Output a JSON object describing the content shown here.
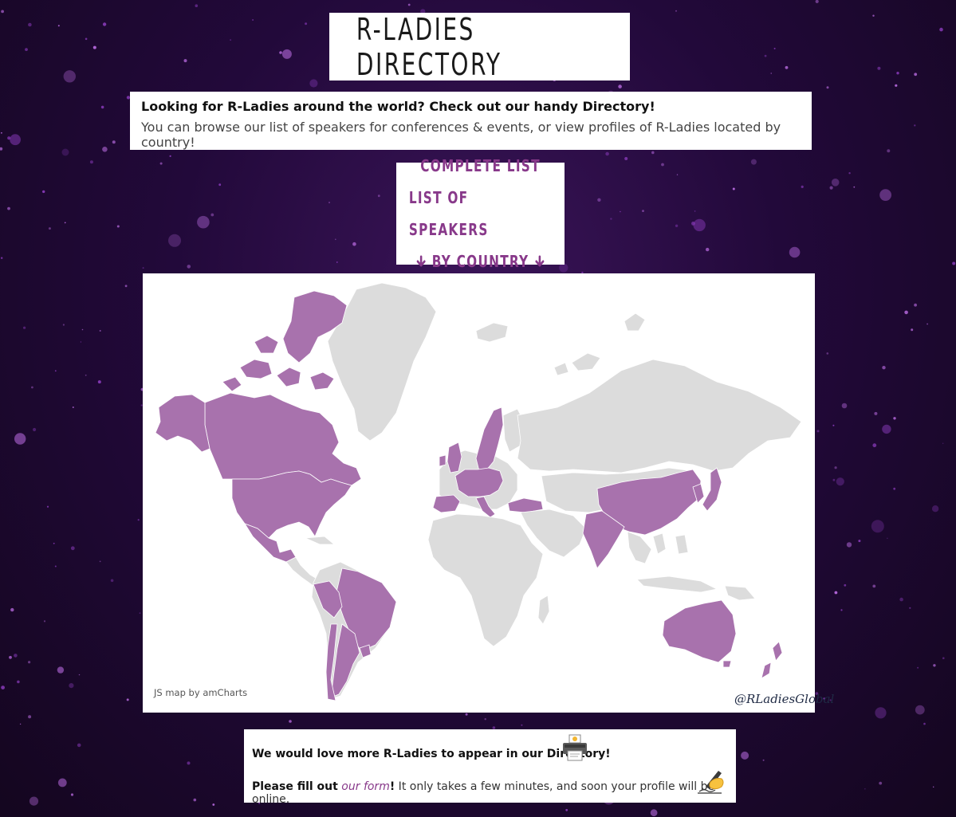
{
  "header": {
    "title": "R-LADIES DIRECTORY"
  },
  "intro": {
    "headline": "Looking for R-Ladies around the world? Check out our handy Directory!",
    "text": "You can browse our list of speakers for conferences & events, or view profiles of R-Ladies located by country!"
  },
  "nav": {
    "complete_list": "COMPLETE LIST",
    "speakers": "LIST OF SPEAKERS",
    "by_country": "BY COUNTRY",
    "arrow_icon": "arrow-down-icon"
  },
  "map": {
    "credit": "JS map by amCharts",
    "handle": "@RLadiesGlobal",
    "colors": {
      "highlight": "#a872ad",
      "base": "#dcdcdc",
      "border": "#ffffff"
    },
    "highlighted_countries": [
      "Canada",
      "United States",
      "Mexico",
      "Peru",
      "Brazil",
      "Chile",
      "Argentina",
      "Uruguay",
      "Ireland",
      "United Kingdom",
      "France",
      "Spain",
      "Portugal",
      "Germany",
      "Netherlands",
      "Belgium",
      "Denmark",
      "Sweden",
      "Norway",
      "Poland",
      "Czechia",
      "Austria",
      "Switzerland",
      "Italy",
      "Hungary",
      "Serbia",
      "Turkey",
      "India",
      "China",
      "South Korea",
      "Japan",
      "Australia",
      "New Zealand"
    ]
  },
  "cta": {
    "line1": "We would love more R-Ladies to appear in our Directory!",
    "line2_prefix": "Please fill out",
    "form_link": "our form",
    "line2_exclaim": "!",
    "line2_suffix": " It only takes a few minutes, and soon your profile will be online.",
    "printer_icon": "printer-icon",
    "writing_icon": "writing-hand-icon"
  },
  "theme": {
    "accent": "#88398a",
    "background": "#22093a"
  }
}
